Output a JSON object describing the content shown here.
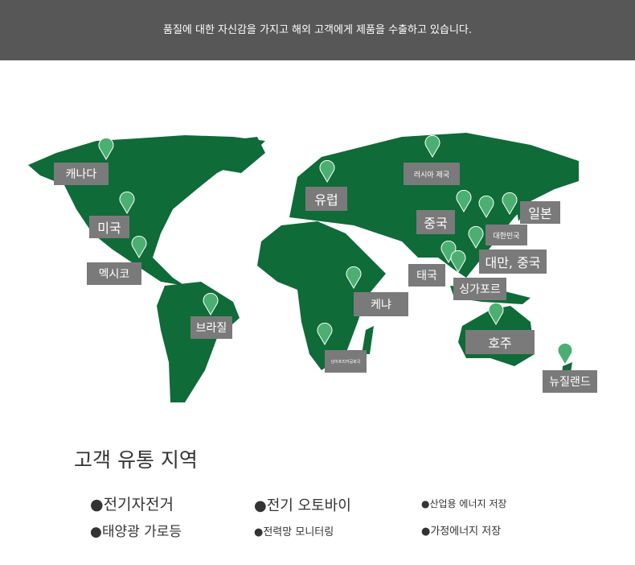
{
  "header": {
    "text": "품질에 대한 자신감을 가지고 해외 고객에게 제품을 수출하고 있습니다."
  },
  "colors": {
    "land": "#0f6b38",
    "pin": "#4caf72",
    "label_bg": "#7a7a7a",
    "header_bg": "#575757"
  },
  "map": {
    "labels": [
      {
        "id": "canada",
        "text": "캐나다"
      },
      {
        "id": "usa",
        "text": "미국"
      },
      {
        "id": "mexico",
        "text": "멕시코"
      },
      {
        "id": "brazil",
        "text": "브라질"
      },
      {
        "id": "europe",
        "text": "유럽"
      },
      {
        "id": "russia",
        "text": "러시아 제국"
      },
      {
        "id": "china",
        "text": "중국"
      },
      {
        "id": "korea",
        "text": "대한민국"
      },
      {
        "id": "japan",
        "text": "일본"
      },
      {
        "id": "taiwan",
        "text": "대만, 중국"
      },
      {
        "id": "thailand",
        "text": "태국"
      },
      {
        "id": "singapore",
        "text": "싱가포르"
      },
      {
        "id": "kenya",
        "text": "케냐"
      },
      {
        "id": "south-africa",
        "text": "남아프리카공화국"
      },
      {
        "id": "australia",
        "text": "호주"
      },
      {
        "id": "new-zealand",
        "text": "뉴질랜드"
      }
    ]
  },
  "section": {
    "title": "고객 유통 지역",
    "items": [
      "●전기자전거",
      "●전기 오토바이",
      "●산업용 에너지 저장",
      "●태양광 가로등",
      "●전력망 모니터링",
      "●가정에너지 저장"
    ]
  }
}
